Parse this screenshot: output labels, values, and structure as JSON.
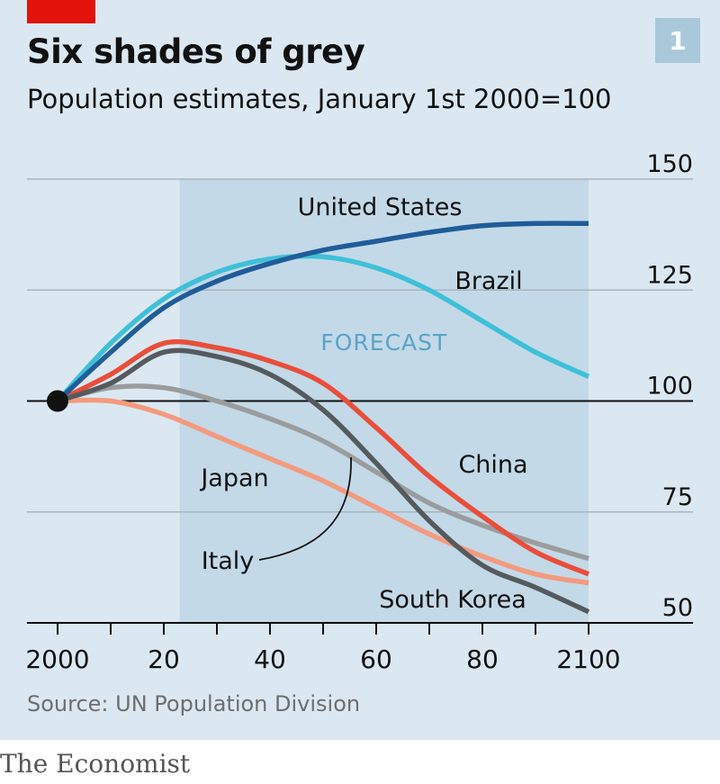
{
  "header": {
    "title": "Six shades of grey",
    "subtitle": "Population estimates, January 1st 2000=100",
    "chart_number": "1"
  },
  "footer": {
    "source": "Source: UN Population Division",
    "publisher": "The Economist"
  },
  "colors": {
    "panel_background": "#dbe8f1",
    "forecast_shade": "#c3d9e7",
    "accent": "#e3120b"
  },
  "chart_data": {
    "type": "line",
    "title": "Six shades of grey",
    "subtitle": "Population estimates, January 1st 2000=100",
    "xlim": [
      2000,
      2100
    ],
    "ylim": [
      50,
      150
    ],
    "x_ticks": [
      2000,
      2010,
      2020,
      2030,
      2040,
      2050,
      2060,
      2070,
      2080,
      2090,
      2100
    ],
    "x_tick_labels": [
      {
        "x": 2000,
        "label": "2000"
      },
      {
        "x": 2020,
        "label": "20"
      },
      {
        "x": 2040,
        "label": "40"
      },
      {
        "x": 2060,
        "label": "60"
      },
      {
        "x": 2080,
        "label": "80"
      },
      {
        "x": 2100,
        "label": "2100"
      }
    ],
    "y_ticks": [
      50,
      75,
      100,
      125,
      150
    ],
    "y_tick_labels": [
      "50",
      "75",
      "100",
      "125",
      "150"
    ],
    "grid": true,
    "baseline": 100,
    "forecast_region": {
      "start": 2023,
      "end": 2100,
      "label": "FORECAST"
    },
    "x": [
      2000,
      2010,
      2020,
      2030,
      2040,
      2050,
      2060,
      2070,
      2080,
      2090,
      2100
    ],
    "series": [
      {
        "name": "United States",
        "color": "#1f5c99",
        "values": [
          100,
          111,
          121,
          127,
          131,
          134,
          136,
          138,
          139.5,
          140,
          140
        ]
      },
      {
        "name": "Brazil",
        "color": "#3fc0d8",
        "values": [
          100,
          113,
          123,
          129,
          132,
          132.5,
          130,
          125,
          118,
          111,
          105.5
        ]
      },
      {
        "name": "China",
        "color": "#e94e3a",
        "values": [
          100,
          106,
          113,
          112,
          109,
          104,
          94,
          83,
          74,
          66,
          61
        ]
      },
      {
        "name": "South Korea",
        "color": "#555a5f",
        "values": [
          100,
          104,
          111,
          110,
          106,
          98,
          86,
          73,
          63,
          58,
          52.5
        ]
      },
      {
        "name": "Italy",
        "color": "#9a9c9e",
        "values": [
          100,
          103,
          103,
          100,
          96,
          91,
          84,
          77,
          72,
          68,
          64.5
        ]
      },
      {
        "name": "Japan",
        "color": "#f49a7e",
        "values": [
          100,
          100,
          97,
          92,
          87,
          82,
          76,
          70,
          65,
          61,
          59
        ]
      }
    ]
  }
}
